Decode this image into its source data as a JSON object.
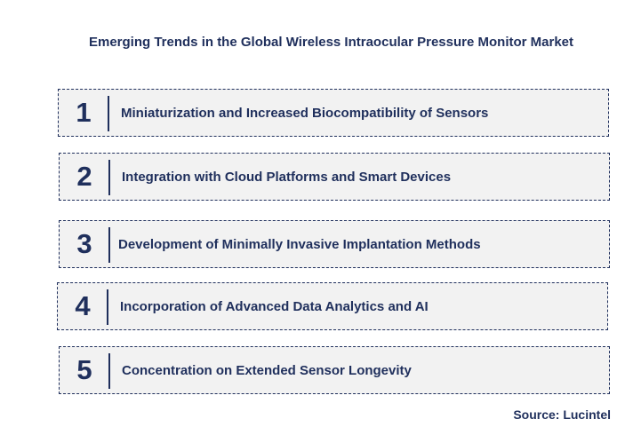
{
  "title": "Emerging Trends in the Global Wireless Intraocular Pressure Monitor Market",
  "trends": [
    {
      "number": "1",
      "label": "Miniaturization and Increased Biocompatibility of Sensors"
    },
    {
      "number": "2",
      "label": "Integration with Cloud Platforms and Smart Devices"
    },
    {
      "number": "3",
      "label": "Development of Minimally Invasive Implantation Methods"
    },
    {
      "number": "4",
      "label": "Incorporation of Advanced Data Analytics and AI"
    },
    {
      "number": "5",
      "label": "Concentration on Extended Sensor Longevity"
    }
  ],
  "source": "Source: Lucintel",
  "colors": {
    "text": "#1f2f5c",
    "box_fill": "#f2f2f2",
    "box_border": "#1f2f5c"
  }
}
